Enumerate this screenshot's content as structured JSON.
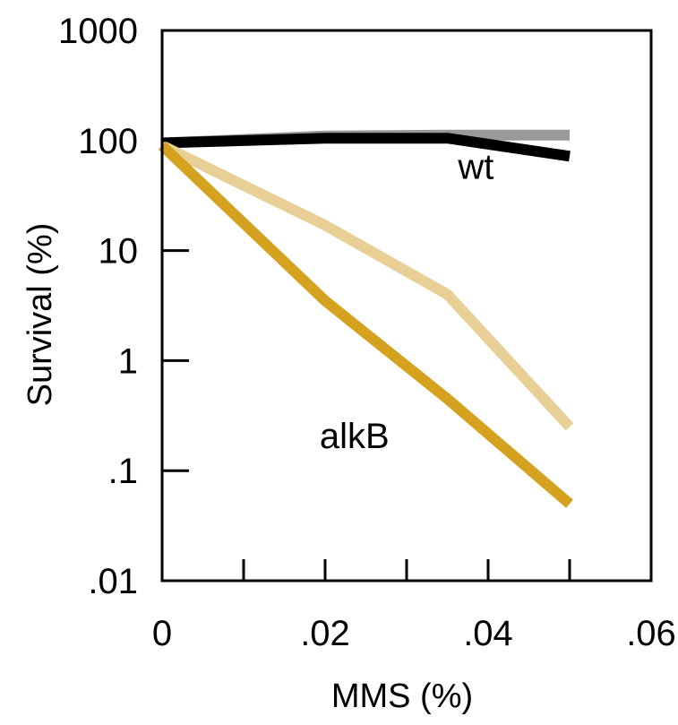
{
  "chart_data": {
    "type": "line",
    "xlabel": "MMS (%)",
    "ylabel": "Survival (%)",
    "xlim": [
      0,
      0.06
    ],
    "ylim": [
      0.01,
      1000
    ],
    "yscale": "log",
    "grid": false,
    "x_ticks": [
      {
        "value": 0,
        "label": "0"
      },
      {
        "value": 0.02,
        "label": ".02"
      },
      {
        "value": 0.04,
        "label": ".04"
      },
      {
        "value": 0.06,
        "label": ".06"
      }
    ],
    "x_minor_ticks": [
      0.01,
      0.02,
      0.03,
      0.04,
      0.05
    ],
    "y_ticks": [
      {
        "value": 0.01,
        "label": ".01"
      },
      {
        "value": 0.1,
        "label": ".1"
      },
      {
        "value": 1,
        "label": "1"
      },
      {
        "value": 10,
        "label": "10"
      },
      {
        "value": 100,
        "label": "100"
      },
      {
        "value": 1000,
        "label": "1000"
      }
    ],
    "series": [
      {
        "color": "#999999",
        "x": [
          0,
          0.02,
          0.035,
          0.05
        ],
        "y": [
          95,
          110,
          112,
          112
        ]
      },
      {
        "color": "#000000",
        "x": [
          0,
          0.02,
          0.035,
          0.05
        ],
        "y": [
          95,
          105,
          105,
          72
        ]
      },
      {
        "color": "#e8cf95",
        "x": [
          0,
          0.02,
          0.035,
          0.05
        ],
        "y": [
          90,
          17,
          4,
          0.25
        ]
      },
      {
        "color": "#d4a21e",
        "x": [
          0,
          0.02,
          0.035,
          0.05
        ],
        "y": [
          90,
          3.5,
          0.45,
          0.05
        ]
      }
    ],
    "annotations": [
      {
        "text": "wt",
        "x": 0.0385,
        "y": 45
      },
      {
        "text": "alkB",
        "x": 0.0236,
        "y": 0.16
      }
    ]
  }
}
